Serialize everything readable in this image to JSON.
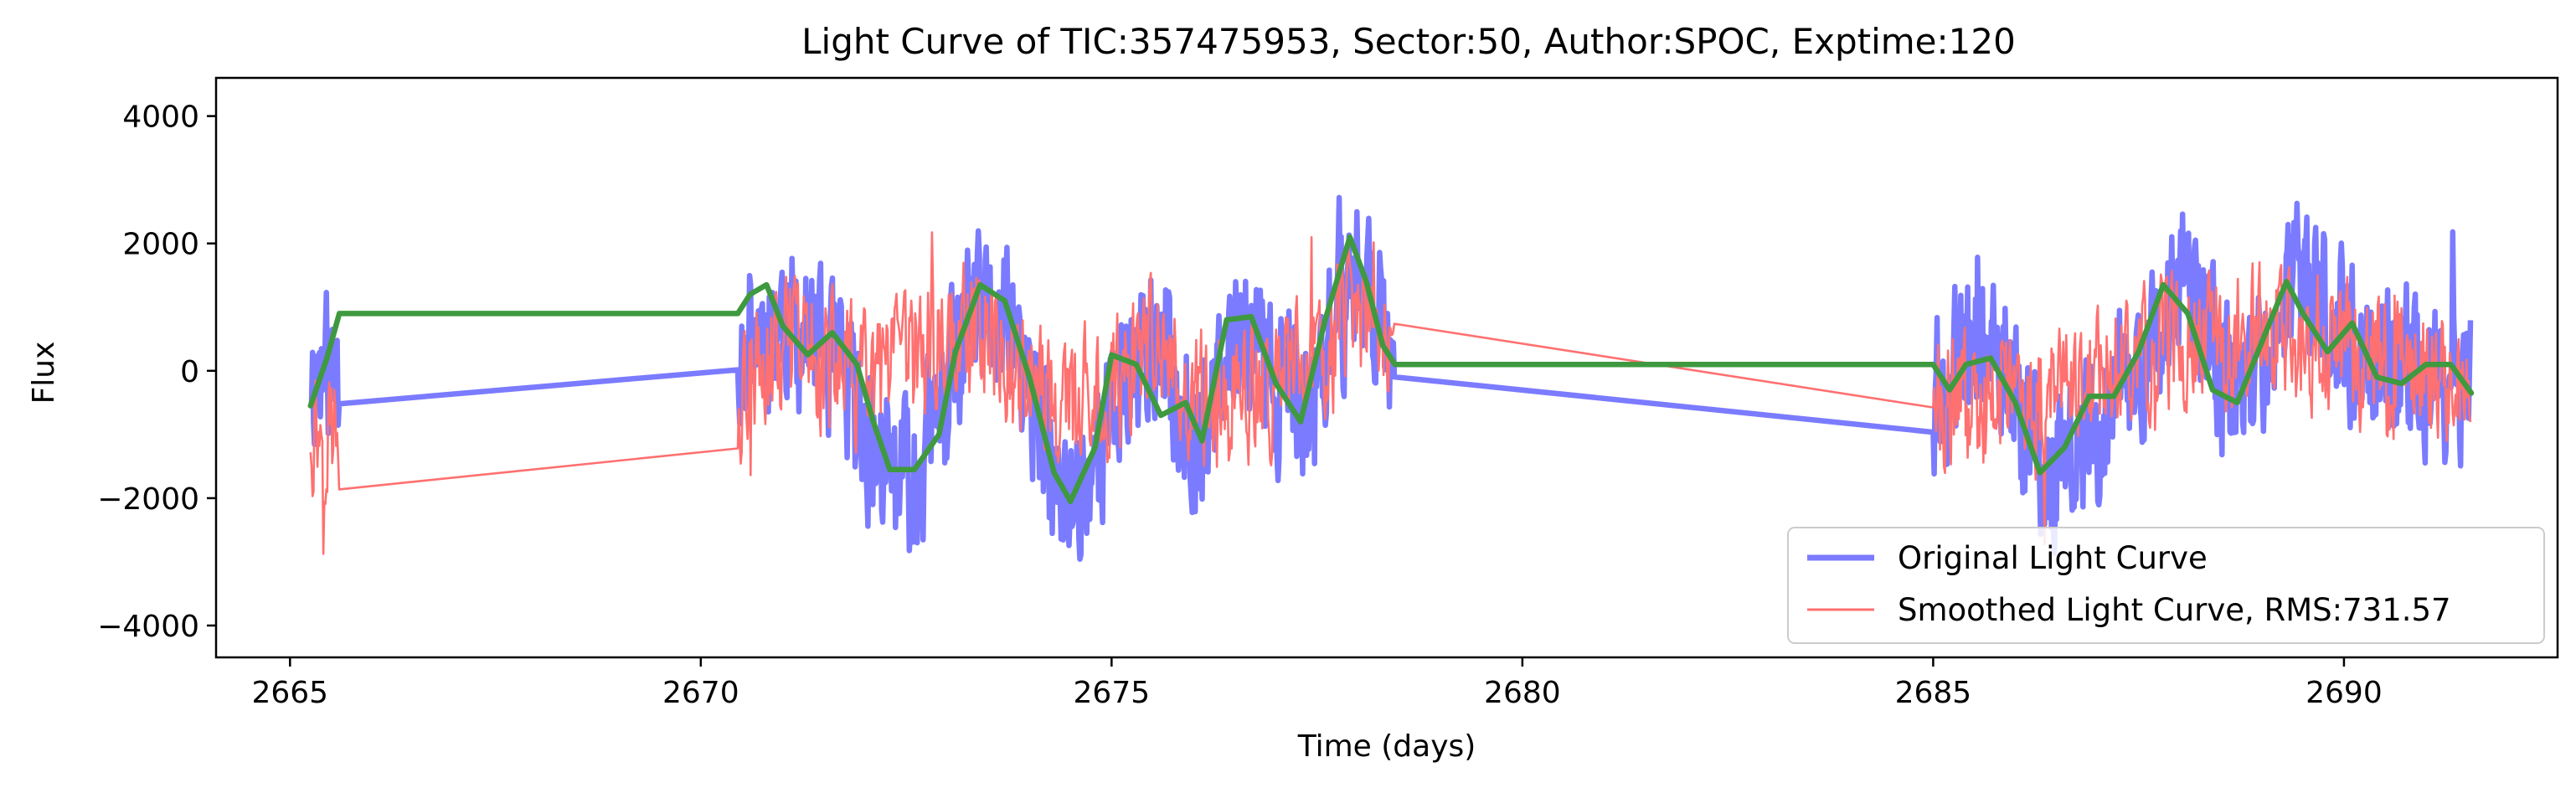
{
  "chart_data": {
    "type": "line",
    "title": "Light Curve of TIC:357475953, Sector:50, Author:SPOC, Exptime:120",
    "xlabel": "Time (days)",
    "ylabel": "Flux",
    "xlim": [
      2664.1,
      2692.6
    ],
    "ylim": [
      -4500,
      4600
    ],
    "x_ticks": [
      2665,
      2670,
      2675,
      2680,
      2685,
      2690
    ],
    "y_ticks": [
      -4000,
      -2000,
      0,
      2000,
      4000
    ],
    "x_tick_labels": [
      "2665",
      "2670",
      "2675",
      "2680",
      "2685",
      "2690"
    ],
    "y_tick_labels": [
      "−4000",
      "−2000",
      "0",
      "2000",
      "4000"
    ],
    "grid": false,
    "legend_position": "lower-right",
    "segments": [
      [
        2665.25,
        2665.6
      ],
      [
        2670.45,
        2678.45
      ],
      [
        2685.0,
        2691.55
      ]
    ],
    "series": [
      {
        "name": "Original Light Curve",
        "color": "#7b7bff",
        "style": "thick noisy line",
        "noise_amplitude": 1100,
        "envelope": [
          [
            2665.25,
            0
          ],
          [
            2665.6,
            0
          ],
          [
            2670.45,
            500
          ],
          [
            2671.0,
            800
          ],
          [
            2671.5,
            300
          ],
          [
            2672.2,
            -1500
          ],
          [
            2672.6,
            -1800
          ],
          [
            2673.3,
            800
          ],
          [
            2673.8,
            500
          ],
          [
            2674.4,
            -2200
          ],
          [
            2674.8,
            -1400
          ],
          [
            2675.4,
            600
          ],
          [
            2676.1,
            -1200
          ],
          [
            2676.6,
            700
          ],
          [
            2677.3,
            -800
          ],
          [
            2678.0,
            1600
          ],
          [
            2678.45,
            500
          ],
          [
            2685.0,
            -350
          ],
          [
            2685.6,
            300
          ],
          [
            2686.5,
            -1700
          ],
          [
            2687.3,
            -300
          ],
          [
            2688.1,
            1300
          ],
          [
            2688.7,
            -500
          ],
          [
            2689.4,
            1400
          ],
          [
            2690.3,
            200
          ],
          [
            2691.55,
            -300
          ]
        ]
      },
      {
        "name": "Smoothed Light Curve, RMS:731.57",
        "color": "#ff7070",
        "style": "thin noisy line",
        "noise_amplitude": 950,
        "envelope": [
          [
            2665.25,
            -850
          ],
          [
            2665.6,
            -850
          ],
          [
            2670.45,
            -350
          ],
          [
            2671.2,
            400
          ],
          [
            2672.1,
            -300
          ],
          [
            2672.7,
            300
          ],
          [
            2673.4,
            800
          ],
          [
            2674.4,
            -700
          ],
          [
            2675.5,
            200
          ],
          [
            2676.3,
            -600
          ],
          [
            2677.4,
            100
          ],
          [
            2678.0,
            900
          ],
          [
            2678.45,
            400
          ],
          [
            2685.0,
            -450
          ],
          [
            2686.2,
            -600
          ],
          [
            2687.0,
            0
          ],
          [
            2688.0,
            500
          ],
          [
            2689.3,
            500
          ],
          [
            2690.5,
            100
          ],
          [
            2691.55,
            -150
          ]
        ]
      },
      {
        "color": "#3f993f",
        "style": "smooth trend",
        "x": [
          2665.25,
          2665.45,
          2665.6,
          2670.45,
          2670.6,
          2670.8,
          2671.0,
          2671.3,
          2671.6,
          2671.9,
          2672.1,
          2672.3,
          2672.6,
          2672.9,
          2673.1,
          2673.4,
          2673.7,
          2674.0,
          2674.3,
          2674.5,
          2674.8,
          2675.0,
          2675.3,
          2675.6,
          2675.9,
          2676.1,
          2676.4,
          2676.7,
          2677.0,
          2677.3,
          2677.6,
          2677.9,
          2678.1,
          2678.3,
          2678.45,
          2685.0,
          2685.2,
          2685.4,
          2685.7,
          2686.0,
          2686.3,
          2686.6,
          2686.9,
          2687.2,
          2687.5,
          2687.8,
          2688.1,
          2688.4,
          2688.7,
          2689.0,
          2689.3,
          2689.5,
          2689.8,
          2690.1,
          2690.4,
          2690.7,
          2691.0,
          2691.3,
          2691.55
        ],
        "y": [
          -550,
          200,
          900,
          900,
          1200,
          1350,
          700,
          250,
          600,
          100,
          -800,
          -1550,
          -1550,
          -1000,
          300,
          1350,
          1100,
          -100,
          -1600,
          -2050,
          -1200,
          250,
          100,
          -700,
          -500,
          -1100,
          800,
          850,
          -200,
          -800,
          800,
          2100,
          1400,
          400,
          100,
          100,
          -300,
          100,
          200,
          -500,
          -1600,
          -1200,
          -400,
          -400,
          300,
          1350,
          900,
          -300,
          -500,
          450,
          1400,
          900,
          300,
          750,
          -100,
          -200,
          100,
          100,
          -350
        ]
      }
    ]
  }
}
